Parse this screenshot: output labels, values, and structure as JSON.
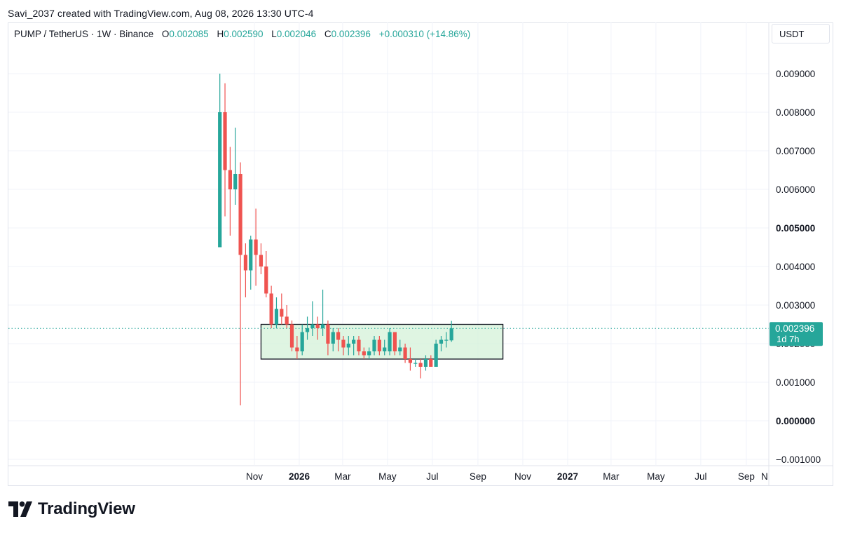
{
  "caption": "Savi_2037 created with TradingView.com, Aug 08, 2026 13:30 UTC-4",
  "legend": {
    "symbol": "PUMP / TetherUS · 1W · Binance",
    "open_label": "O",
    "open": "0.002085",
    "high_label": "H",
    "high": "0.002590",
    "low_label": "L",
    "low": "0.002046",
    "close_label": "C",
    "close": "0.002396",
    "change": "+0.000310 (+14.86%)"
  },
  "unit": "USDT",
  "price_tag": {
    "price": "0.002396",
    "countdown": "1d 7h"
  },
  "brand": "TradingView",
  "colors": {
    "up": "#26a69a",
    "down": "#ef5350",
    "grid": "#f0f3fa",
    "box_fill": "#d4f2d8",
    "tag_bg": "#26a69a"
  },
  "chart_data": {
    "type": "candlestick",
    "title": "PUMP / TetherUS · 1W · Binance",
    "ylim": [
      -0.001,
      0.0095
    ],
    "y_ticks": [
      "0.009000",
      "0.008000",
      "0.007000",
      "0.006000",
      "0.005000",
      "0.004000",
      "0.003000",
      "0.002000",
      "0.001000",
      "0.000000",
      "−0.001000"
    ],
    "y_tick_values": [
      0.009,
      0.008,
      0.007,
      0.006,
      0.005,
      0.004,
      0.003,
      0.002,
      0.001,
      0.0,
      -0.001
    ],
    "bold_ticks": [
      "0.005000",
      "0.000000"
    ],
    "x_ticks": [
      "Nov",
      "2026",
      "Mar",
      "May",
      "Jul",
      "Sep",
      "Nov",
      "2027",
      "Mar",
      "May",
      "Jul",
      "Sep",
      "N"
    ],
    "x_tick_dates": [
      "2025-11-01",
      "2026-01-01",
      "2026-03-01",
      "2026-05-01",
      "2026-07-01",
      "2026-09-01",
      "2026-11-01",
      "2027-01-01",
      "2027-03-01",
      "2027-05-01",
      "2027-07-01",
      "2027-09-01",
      "2027-11-01"
    ],
    "bold_x_ticks": [
      "2026",
      "2027"
    ],
    "grid": true,
    "last_price": 0.002396,
    "range_box": {
      "start": "2025-11-10",
      "end": "2026-10-05",
      "top": 0.0025,
      "bottom": 0.0016
    },
    "candles": [
      {
        "date": "2025-09-15",
        "o": 0.0045,
        "h": 0.009,
        "l": 0.0045,
        "c": 0.008
      },
      {
        "date": "2025-09-22",
        "o": 0.008,
        "h": 0.00875,
        "l": 0.0053,
        "c": 0.0065
      },
      {
        "date": "2025-09-29",
        "o": 0.0065,
        "h": 0.0071,
        "l": 0.0048,
        "c": 0.006
      },
      {
        "date": "2025-10-06",
        "o": 0.006,
        "h": 0.0076,
        "l": 0.0056,
        "c": 0.0064
      },
      {
        "date": "2025-10-13",
        "o": 0.0064,
        "h": 0.0067,
        "l": 0.0004,
        "c": 0.0043
      },
      {
        "date": "2025-10-20",
        "o": 0.0043,
        "h": 0.0046,
        "l": 0.0032,
        "c": 0.0039
      },
      {
        "date": "2025-10-27",
        "o": 0.0039,
        "h": 0.0048,
        "l": 0.0034,
        "c": 0.0047
      },
      {
        "date": "2025-11-03",
        "o": 0.0047,
        "h": 0.0055,
        "l": 0.0035,
        "c": 0.0043
      },
      {
        "date": "2025-11-10",
        "o": 0.0043,
        "h": 0.0046,
        "l": 0.0038,
        "c": 0.004
      },
      {
        "date": "2025-11-17",
        "o": 0.004,
        "h": 0.0044,
        "l": 0.0032,
        "c": 0.0033
      },
      {
        "date": "2025-11-24",
        "o": 0.0033,
        "h": 0.0035,
        "l": 0.0024,
        "c": 0.0025
      },
      {
        "date": "2025-12-01",
        "o": 0.0025,
        "h": 0.0032,
        "l": 0.0024,
        "c": 0.0029
      },
      {
        "date": "2025-12-08",
        "o": 0.0029,
        "h": 0.0033,
        "l": 0.0025,
        "c": 0.0027
      },
      {
        "date": "2025-12-15",
        "o": 0.0027,
        "h": 0.003,
        "l": 0.0024,
        "c": 0.0025
      },
      {
        "date": "2025-12-22",
        "o": 0.0025,
        "h": 0.0026,
        "l": 0.0018,
        "c": 0.0019
      },
      {
        "date": "2025-12-29",
        "o": 0.0019,
        "h": 0.0022,
        "l": 0.0016,
        "c": 0.0018
      },
      {
        "date": "2026-01-05",
        "o": 0.0018,
        "h": 0.0025,
        "l": 0.0017,
        "c": 0.0023
      },
      {
        "date": "2026-01-12",
        "o": 0.0023,
        "h": 0.0027,
        "l": 0.0021,
        "c": 0.0024
      },
      {
        "date": "2026-01-19",
        "o": 0.0024,
        "h": 0.0031,
        "l": 0.0022,
        "c": 0.0025
      },
      {
        "date": "2026-01-26",
        "o": 0.0025,
        "h": 0.0027,
        "l": 0.0021,
        "c": 0.0024
      },
      {
        "date": "2026-02-02",
        "o": 0.0024,
        "h": 0.0034,
        "l": 0.0022,
        "c": 0.0025
      },
      {
        "date": "2026-02-09",
        "o": 0.0025,
        "h": 0.0026,
        "l": 0.0017,
        "c": 0.002
      },
      {
        "date": "2026-02-16",
        "o": 0.002,
        "h": 0.0024,
        "l": 0.0018,
        "c": 0.0023
      },
      {
        "date": "2026-02-23",
        "o": 0.0023,
        "h": 0.0024,
        "l": 0.0018,
        "c": 0.0021
      },
      {
        "date": "2026-03-02",
        "o": 0.0021,
        "h": 0.0022,
        "l": 0.0017,
        "c": 0.0019
      },
      {
        "date": "2026-03-09",
        "o": 0.0019,
        "h": 0.0022,
        "l": 0.0017,
        "c": 0.002
      },
      {
        "date": "2026-03-16",
        "o": 0.002,
        "h": 0.0022,
        "l": 0.0017,
        "c": 0.0021
      },
      {
        "date": "2026-03-23",
        "o": 0.0021,
        "h": 0.0022,
        "l": 0.0017,
        "c": 0.0018
      },
      {
        "date": "2026-03-30",
        "o": 0.0018,
        "h": 0.0019,
        "l": 0.0016,
        "c": 0.0017
      },
      {
        "date": "2026-04-06",
        "o": 0.0017,
        "h": 0.0019,
        "l": 0.0016,
        "c": 0.0018
      },
      {
        "date": "2026-04-13",
        "o": 0.0018,
        "h": 0.0022,
        "l": 0.0017,
        "c": 0.0021
      },
      {
        "date": "2026-04-20",
        "o": 0.0021,
        "h": 0.0022,
        "l": 0.0017,
        "c": 0.0018
      },
      {
        "date": "2026-04-27",
        "o": 0.0018,
        "h": 0.0021,
        "l": 0.0017,
        "c": 0.0019
      },
      {
        "date": "2026-05-04",
        "o": 0.0018,
        "h": 0.0024,
        "l": 0.0017,
        "c": 0.0023
      },
      {
        "date": "2026-05-11",
        "o": 0.0023,
        "h": 0.0023,
        "l": 0.0017,
        "c": 0.0018
      },
      {
        "date": "2026-05-18",
        "o": 0.0018,
        "h": 0.0021,
        "l": 0.0017,
        "c": 0.0019
      },
      {
        "date": "2026-05-25",
        "o": 0.0019,
        "h": 0.002,
        "l": 0.0015,
        "c": 0.0016
      },
      {
        "date": "2026-06-01",
        "o": 0.0016,
        "h": 0.0019,
        "l": 0.0013,
        "c": 0.0015
      },
      {
        "date": "2026-06-08",
        "o": 0.0015,
        "h": 0.0016,
        "l": 0.0014,
        "c": 0.0015
      },
      {
        "date": "2026-06-15",
        "o": 0.0015,
        "h": 0.0016,
        "l": 0.0011,
        "c": 0.0014
      },
      {
        "date": "2026-06-22",
        "o": 0.0014,
        "h": 0.0017,
        "l": 0.0013,
        "c": 0.0016
      },
      {
        "date": "2026-06-29",
        "o": 0.0016,
        "h": 0.0017,
        "l": 0.0014,
        "c": 0.0014
      },
      {
        "date": "2026-07-06",
        "o": 0.0014,
        "h": 0.0021,
        "l": 0.0014,
        "c": 0.002
      },
      {
        "date": "2026-07-13",
        "o": 0.002,
        "h": 0.0022,
        "l": 0.0018,
        "c": 0.0021
      },
      {
        "date": "2026-07-20",
        "o": 0.0021,
        "h": 0.0023,
        "l": 0.0019,
        "c": 0.0021
      },
      {
        "date": "2026-07-27",
        "o": 0.002085,
        "h": 0.00259,
        "l": 0.002046,
        "c": 0.002396
      }
    ]
  }
}
